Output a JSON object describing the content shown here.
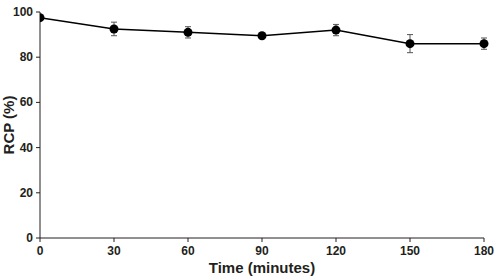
{
  "chart_data": {
    "type": "line",
    "x_label": "Time (minutes)",
    "y_label": "RCP (%)",
    "x": [
      0,
      30,
      60,
      90,
      120,
      150,
      180
    ],
    "series": [
      {
        "color": "#000000",
        "marker": "circle",
        "line_style": "solid",
        "values": [
          97.5,
          92.5,
          91,
          89.5,
          92,
          86,
          86
        ],
        "errors": [
          1,
          3,
          2.5,
          1,
          2.5,
          4,
          2.5
        ]
      }
    ],
    "xlim": [
      0,
      180
    ],
    "xticks": [
      0,
      30,
      60,
      90,
      120,
      150,
      180
    ],
    "ylim": [
      0,
      100
    ],
    "yticks": [
      0,
      20,
      40,
      60,
      80,
      100
    ],
    "grid": false
  }
}
